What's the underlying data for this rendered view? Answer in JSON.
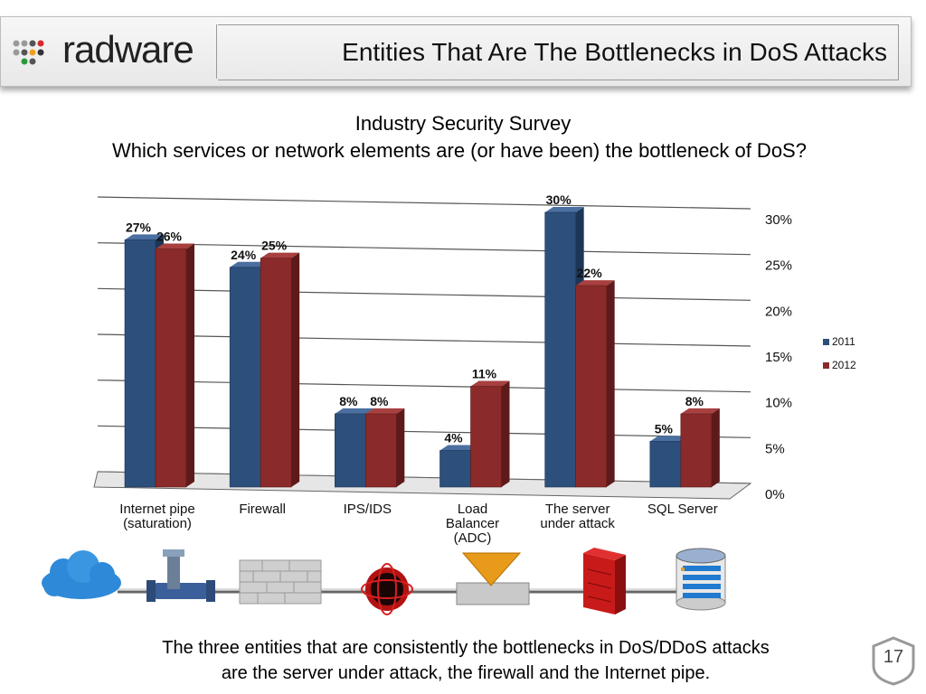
{
  "header": {
    "logo_text": "radware",
    "title": "Entities That Are The Bottlenecks in DoS Attacks"
  },
  "survey": {
    "title": "Industry Security Survey",
    "question": "Which services or network elements are (or have been) the bottleneck of DoS?"
  },
  "chart_data": {
    "type": "bar",
    "categories": [
      "Internet pipe (saturation)",
      "Firewall",
      "IPS/IDS",
      "Load Balancer (ADC)",
      "The server under attack",
      "SQL Server"
    ],
    "series": [
      {
        "name": "2011",
        "values": [
          27,
          24,
          8,
          4,
          30,
          5
        ],
        "color": "#2d4f7c"
      },
      {
        "name": "2012",
        "values": [
          26,
          25,
          8,
          11,
          22,
          8
        ],
        "color": "#8b2a2a"
      }
    ],
    "data_labels": {
      "2011": [
        "27%",
        "24%",
        "8%",
        "4%",
        "30%",
        "5%"
      ],
      "2012": [
        "26%",
        "25%",
        "8%",
        "11%",
        "22%",
        "8%"
      ]
    },
    "y_ticks": [
      "0%",
      "5%",
      "10%",
      "15%",
      "20%",
      "25%",
      "30%"
    ],
    "ylim": [
      0,
      30
    ],
    "grid": true,
    "legend_position": "right",
    "three_d": true
  },
  "icons": [
    "cloud-icon",
    "pipe-valve-icon",
    "firewall-icon",
    "ips-icon",
    "load-balancer-icon",
    "server-icon",
    "database-icon"
  ],
  "footer": {
    "line1": "The three entities that are consistently the bottlenecks in DoS/DDoS attacks",
    "line2": "are the server under attack, the firewall and the Internet pipe."
  },
  "page_number": "17"
}
